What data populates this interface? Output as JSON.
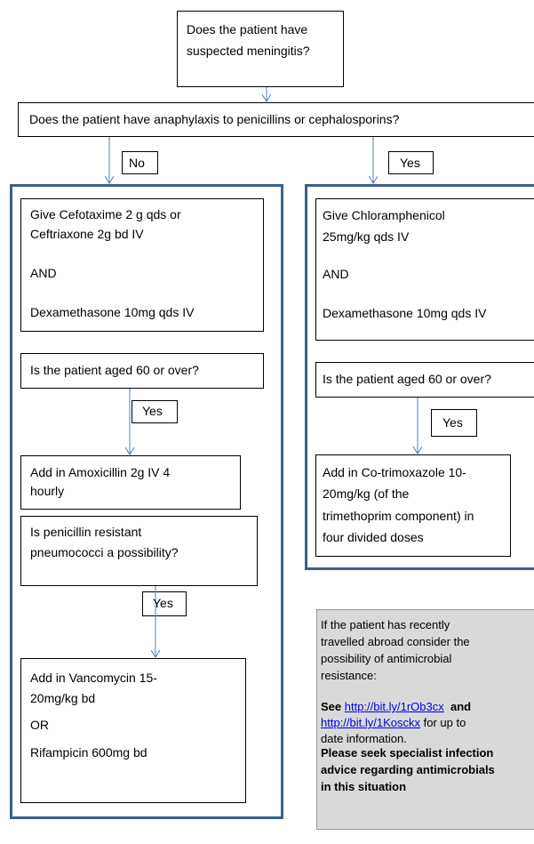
{
  "start": [
    "Does the patient have",
    "suspected meningitis?"
  ],
  "question": "Does the patient have anaphylaxis to penicillins or cephalosporins?",
  "no_branch": {
    "label": "No",
    "treatment": [
      "Give Cefotaxime 2 g qds or",
      "Ceftriaxone 2g bd IV",
      "AND",
      "Dexamethasone 10mg qds IV"
    ],
    "age_question": "Is the patient aged 60 or over?",
    "age_yes": "Yes",
    "amoxicillin": [
      "Add in Amoxicillin 2g IV 4",
      "hourly"
    ],
    "resistance_question": [
      "Is penicillin resistant",
      "pneumococci a possibility?"
    ],
    "resistance_yes": "Yes",
    "vancomycin": [
      "Add in Vancomycin 15-",
      "20mg/kg bd",
      "OR",
      "Rifampicin 600mg bd"
    ]
  },
  "yes_branch": {
    "label": "Yes",
    "treatment": [
      "Give Chloramphenicol",
      "25mg/kg qds IV",
      "AND",
      "Dexamethasone 10mg qds IV"
    ],
    "age_question": "Is the patient aged 60 or over?",
    "age_yes": "Yes",
    "cotrimoxazole": [
      "Add in Co-trimoxazole 10-",
      "20mg/kg (of the",
      "trimethoprim component) in",
      "four divided doses"
    ]
  },
  "note": {
    "intro": [
      "If the patient has recently",
      "travelled abroad consider the",
      "possibility of antimicrobial",
      "resistance:"
    ],
    "see": "See",
    "link1": "http://bit.ly/1rOb3cx",
    "and": "and",
    "link2": "http://bit.ly/1Kosckx",
    "tail": "for up to",
    "tail2": "date information.",
    "warning": [
      "Please seek specialist infection",
      "advice regarding antimicrobials",
      "in this situation"
    ]
  }
}
